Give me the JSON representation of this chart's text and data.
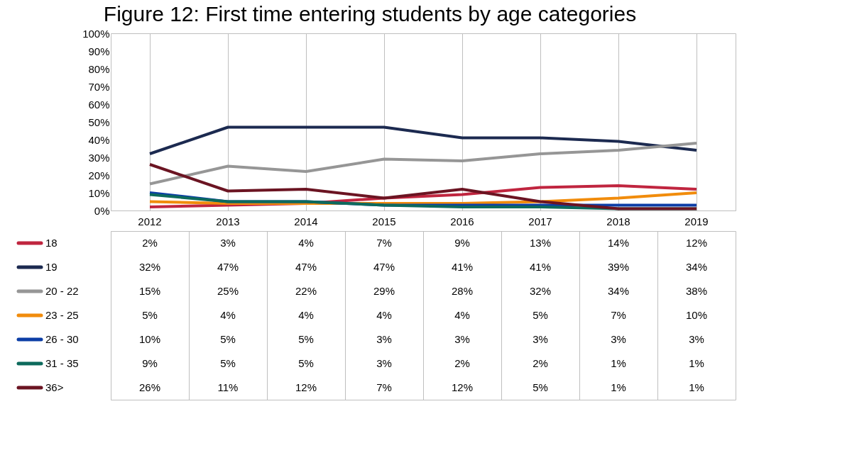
{
  "chart_data": {
    "type": "line",
    "title": "Figure 12: First time entering students by age categories",
    "categories": [
      "2012",
      "2013",
      "2014",
      "2015",
      "2016",
      "2017",
      "2018",
      "2019"
    ],
    "ylim": [
      0,
      100
    ],
    "yticks": [
      {
        "value": 0,
        "label": "0%"
      },
      {
        "value": 10,
        "label": "10%"
      },
      {
        "value": 20,
        "label": "20%"
      },
      {
        "value": 30,
        "label": "30%"
      },
      {
        "value": 40,
        "label": "40%"
      },
      {
        "value": 50,
        "label": "50%"
      },
      {
        "value": 60,
        "label": "60%"
      },
      {
        "value": 70,
        "label": "70%"
      },
      {
        "value": 80,
        "label": "80%"
      },
      {
        "value": 90,
        "label": "90%"
      },
      {
        "value": 100,
        "label": "100%"
      }
    ],
    "grid": "x",
    "legend": "bottom",
    "marker": "none",
    "line_style": "solid",
    "series": [
      {
        "name": "18",
        "color": "#c0253f",
        "values": [
          2,
          3,
          4,
          7,
          9,
          13,
          14,
          12
        ],
        "value_labels": [
          "2%",
          "3%",
          "4%",
          "7%",
          "9%",
          "13%",
          "14%",
          "12%"
        ]
      },
      {
        "name": "19",
        "color": "#1c2a50",
        "values": [
          32,
          47,
          47,
          47,
          41,
          41,
          39,
          34
        ],
        "value_labels": [
          "32%",
          "47%",
          "47%",
          "47%",
          "41%",
          "41%",
          "39%",
          "34%"
        ]
      },
      {
        "name": "20 - 22",
        "color": "#969696",
        "values": [
          15,
          25,
          22,
          29,
          28,
          32,
          34,
          38
        ],
        "value_labels": [
          "15%",
          "25%",
          "22%",
          "29%",
          "28%",
          "32%",
          "34%",
          "38%"
        ]
      },
      {
        "name": "23 - 25",
        "color": "#f18c0c",
        "values": [
          5,
          4,
          4,
          4,
          4,
          5,
          7,
          10
        ],
        "value_labels": [
          "5%",
          "4%",
          "4%",
          "4%",
          "4%",
          "5%",
          "7%",
          "10%"
        ]
      },
      {
        "name": "26 - 30",
        "color": "#0c3ea6",
        "values": [
          10,
          5,
          5,
          3,
          3,
          3,
          3,
          3
        ],
        "value_labels": [
          "10%",
          "5%",
          "5%",
          "3%",
          "3%",
          "3%",
          "3%",
          "3%"
        ]
      },
      {
        "name": "31 - 35",
        "color": "#0d6a5c",
        "values": [
          9,
          5,
          5,
          3,
          2,
          2,
          1,
          1
        ],
        "value_labels": [
          "9%",
          "5%",
          "5%",
          "3%",
          "2%",
          "2%",
          "1%",
          "1%"
        ]
      },
      {
        "name": "36>",
        "color": "#6b1422",
        "values": [
          26,
          11,
          12,
          7,
          12,
          5,
          1,
          1
        ],
        "value_labels": [
          "26%",
          "11%",
          "12%",
          "7%",
          "12%",
          "5%",
          "1%",
          "1%"
        ]
      }
    ]
  }
}
